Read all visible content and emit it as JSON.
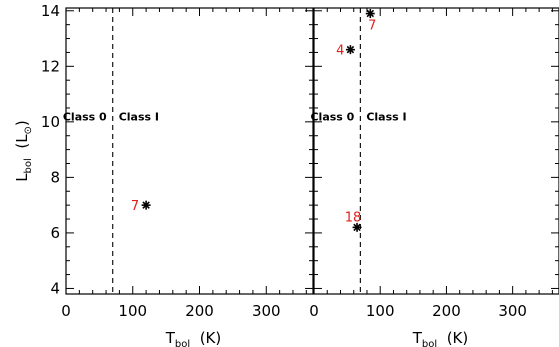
{
  "chart_data": [
    {
      "type": "scatter",
      "xlim": [
        0,
        370
      ],
      "ylim": [
        3.8,
        14.1
      ],
      "x_ticks": [
        "0",
        "100",
        "200",
        "300"
      ],
      "x_tick_values": [
        0,
        100,
        200,
        300
      ],
      "y_ticks": [
        "4",
        "6",
        "8",
        "10",
        "12",
        "14"
      ],
      "y_tick_values": [
        4,
        6,
        8,
        10,
        12,
        14
      ],
      "xlabel": {
        "main": "T",
        "sub": "bol",
        "unit": "(K)"
      },
      "ylabel": {
        "main": "L",
        "sub": "bol",
        "unit": "(L",
        "unit_close": ")"
      },
      "divider_x": 70,
      "class_labels": [
        "Class 0",
        "Class I"
      ],
      "class_label_y": 10.05,
      "points": [
        {
          "label": "7",
          "x": 120,
          "y": 7.0
        }
      ],
      "marker_color": "#000000",
      "label_color": "#e0201a"
    },
    {
      "type": "scatter",
      "xlim": [
        0,
        370
      ],
      "ylim": [
        3.8,
        14.1
      ],
      "x_ticks": [
        "0",
        "100",
        "200",
        "300"
      ],
      "x_tick_values": [
        0,
        100,
        200,
        300
      ],
      "xlabel": {
        "main": "T",
        "sub": "bol",
        "unit": "(K)"
      },
      "divider_x": 70,
      "class_labels": [
        "Class 0",
        "Class I"
      ],
      "class_label_y": 10.05,
      "points": [
        {
          "label": "7",
          "x": 85,
          "y": 13.9
        },
        {
          "label": "4",
          "x": 55,
          "y": 12.6
        },
        {
          "label": "18",
          "x": 65,
          "y": 6.2
        }
      ],
      "marker_color": "#000000",
      "label_color": "#e0201a"
    }
  ]
}
